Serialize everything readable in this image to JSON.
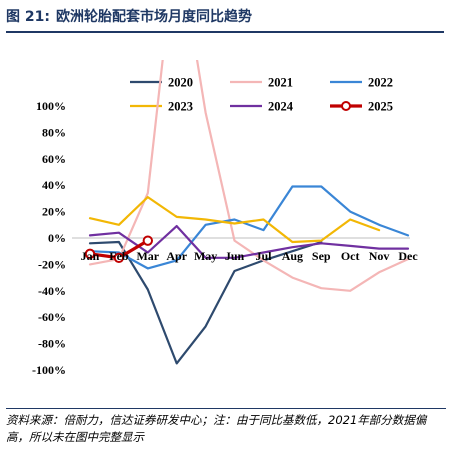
{
  "header": {
    "figure_label": "图 21:",
    "title": "欧洲轮胎配套市场月度同比趋势"
  },
  "footer": {
    "note": "资料来源：倍耐力，信达证券研发中心；注：由于同比基数低，2021年部分数据偏高，所以未在图中完整显示"
  },
  "chart_data": {
    "type": "line",
    "categories": [
      "Jan",
      "Feb",
      "Mar",
      "Apr",
      "May",
      "Jun",
      "Jul",
      "Aug",
      "Sep",
      "Oct",
      "Nov",
      "Dec"
    ],
    "y_ticks": [
      "100%",
      "80%",
      "60%",
      "40%",
      "20%",
      "0%",
      "-20%",
      "-40%",
      "-60%",
      "-80%",
      "-100%"
    ],
    "ylim": [
      -100,
      100
    ],
    "y_unit": "%",
    "legend_position": "top",
    "series": [
      {
        "name": "2020",
        "color": "#2e4a6e",
        "values": [
          -4,
          -3,
          -39,
          -95,
          -67,
          -25,
          -17,
          -10,
          -3,
          null,
          null,
          null
        ]
      },
      {
        "name": "2021",
        "color": "#f4b6b6",
        "values": [
          -20,
          -16,
          34,
          230,
          95,
          -2,
          -17,
          -30,
          -38,
          -40,
          -26,
          -16
        ]
      },
      {
        "name": "2022",
        "color": "#3a86d6",
        "values": [
          -10,
          -11,
          -23,
          -17,
          10,
          14,
          6,
          39,
          39,
          20,
          10,
          2
        ]
      },
      {
        "name": "2023",
        "color": "#f2b705",
        "values": [
          15,
          10,
          31,
          16,
          14,
          11,
          14,
          -3,
          -2,
          14,
          6,
          null
        ]
      },
      {
        "name": "2024",
        "color": "#7030a0",
        "values": [
          2,
          4,
          -11,
          9,
          -15,
          -15,
          -11,
          -7,
          -4,
          -6,
          -8,
          -8
        ]
      },
      {
        "name": "2025",
        "color": "#c00000",
        "values": [
          -12,
          -15,
          -2,
          null,
          null,
          null,
          null,
          null,
          null,
          null,
          null,
          null
        ]
      }
    ]
  }
}
